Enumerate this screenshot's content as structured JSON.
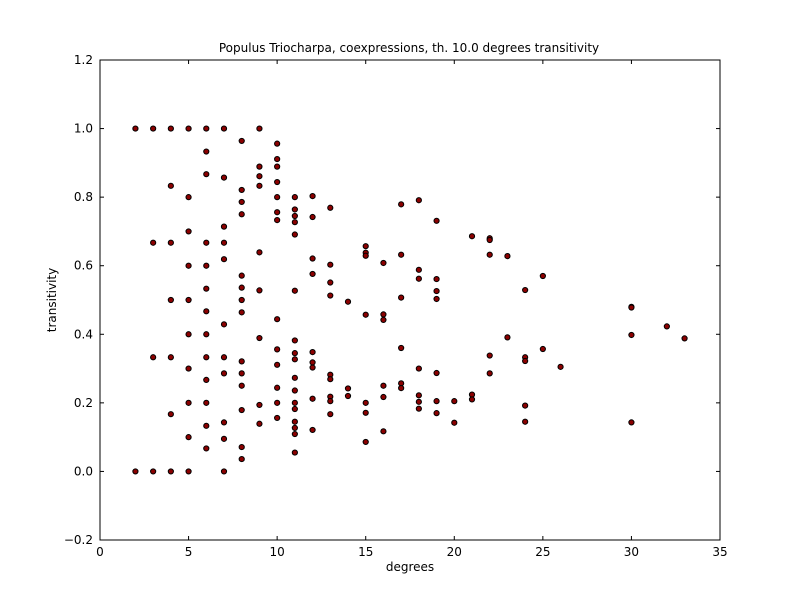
{
  "chart_data": {
    "type": "scatter",
    "title": "Populus Triocharpa, coexpressions, th. 10.0 degrees transitivity",
    "xlabel": "degrees",
    "ylabel": "transitivity",
    "xlim": [
      0,
      35
    ],
    "ylim": [
      -0.2,
      1.2
    ],
    "xticks": [
      0,
      5,
      10,
      15,
      20,
      25,
      30,
      35
    ],
    "xtick_labels": [
      "0",
      "5",
      "10",
      "15",
      "20",
      "25",
      "30",
      "35"
    ],
    "yticks": [
      -0.2,
      0.0,
      0.2,
      0.4,
      0.6,
      0.8,
      1.0,
      1.2
    ],
    "ytick_labels": [
      "−0.2",
      "0.0",
      "0.2",
      "0.4",
      "0.6",
      "0.8",
      "1.0",
      "1.2"
    ],
    "grid": false,
    "marker_color": "#8b0000",
    "marker_edge": "#000000",
    "series": [
      {
        "points": [
          [
            2,
            1.0
          ],
          [
            2,
            0.0
          ],
          [
            3,
            1.0
          ],
          [
            3,
            0.667
          ],
          [
            3,
            0.333
          ],
          [
            3,
            0.0
          ],
          [
            4,
            1.0
          ],
          [
            4,
            0.833
          ],
          [
            4,
            0.667
          ],
          [
            4,
            0.5
          ],
          [
            4,
            0.333
          ],
          [
            4,
            0.167
          ],
          [
            4,
            0.0
          ],
          [
            5,
            1.0
          ],
          [
            5,
            0.8
          ],
          [
            5,
            0.7
          ],
          [
            5,
            0.6
          ],
          [
            5,
            0.5
          ],
          [
            5,
            0.4
          ],
          [
            5,
            0.3
          ],
          [
            5,
            0.2
          ],
          [
            5,
            0.1
          ],
          [
            5,
            0.0
          ],
          [
            6,
            1.0
          ],
          [
            6,
            0.933
          ],
          [
            6,
            0.867
          ],
          [
            6,
            0.667
          ],
          [
            6,
            0.6
          ],
          [
            6,
            0.533
          ],
          [
            6,
            0.467
          ],
          [
            6,
            0.4
          ],
          [
            6,
            0.333
          ],
          [
            6,
            0.267
          ],
          [
            6,
            0.2
          ],
          [
            6,
            0.133
          ],
          [
            6,
            0.067
          ],
          [
            7,
            1.0
          ],
          [
            7,
            0.857
          ],
          [
            7,
            0.714
          ],
          [
            7,
            0.667
          ],
          [
            7,
            0.619
          ],
          [
            7,
            0.429
          ],
          [
            7,
            0.333
          ],
          [
            7,
            0.286
          ],
          [
            7,
            0.143
          ],
          [
            7,
            0.095
          ],
          [
            7,
            0.0
          ],
          [
            8,
            0.964
          ],
          [
            8,
            0.821
          ],
          [
            8,
            0.786
          ],
          [
            8,
            0.75
          ],
          [
            8,
            0.571
          ],
          [
            8,
            0.536
          ],
          [
            8,
            0.5
          ],
          [
            8,
            0.464
          ],
          [
            8,
            0.321
          ],
          [
            8,
            0.286
          ],
          [
            8,
            0.25
          ],
          [
            8,
            0.179
          ],
          [
            8,
            0.071
          ],
          [
            8,
            0.036
          ],
          [
            9,
            1.0
          ],
          [
            9,
            0.889
          ],
          [
            9,
            0.861
          ],
          [
            9,
            0.833
          ],
          [
            9,
            0.639
          ],
          [
            9,
            0.528
          ],
          [
            9,
            0.389
          ],
          [
            9,
            0.194
          ],
          [
            9,
            0.139
          ],
          [
            10,
            0.956
          ],
          [
            10,
            0.911
          ],
          [
            10,
            0.889
          ],
          [
            10,
            0.844
          ],
          [
            10,
            0.8
          ],
          [
            10,
            0.756
          ],
          [
            10,
            0.733
          ],
          [
            10,
            0.444
          ],
          [
            10,
            0.356
          ],
          [
            10,
            0.311
          ],
          [
            10,
            0.244
          ],
          [
            10,
            0.2
          ],
          [
            10,
            0.156
          ],
          [
            11,
            0.8
          ],
          [
            11,
            0.764
          ],
          [
            11,
            0.745
          ],
          [
            11,
            0.727
          ],
          [
            11,
            0.691
          ],
          [
            11,
            0.527
          ],
          [
            11,
            0.382
          ],
          [
            11,
            0.345
          ],
          [
            11,
            0.327
          ],
          [
            11,
            0.273
          ],
          [
            11,
            0.236
          ],
          [
            11,
            0.2
          ],
          [
            11,
            0.182
          ],
          [
            11,
            0.145
          ],
          [
            11,
            0.127
          ],
          [
            11,
            0.109
          ],
          [
            11,
            0.055
          ],
          [
            12,
            0.803
          ],
          [
            12,
            0.742
          ],
          [
            12,
            0.621
          ],
          [
            12,
            0.576
          ],
          [
            12,
            0.348
          ],
          [
            12,
            0.318
          ],
          [
            12,
            0.303
          ],
          [
            12,
            0.212
          ],
          [
            12,
            0.121
          ],
          [
            13,
            0.769
          ],
          [
            13,
            0.603
          ],
          [
            13,
            0.551
          ],
          [
            13,
            0.513
          ],
          [
            13,
            0.282
          ],
          [
            13,
            0.269
          ],
          [
            13,
            0.218
          ],
          [
            13,
            0.205
          ],
          [
            13,
            0.167
          ],
          [
            14,
            0.495
          ],
          [
            14,
            0.242
          ],
          [
            14,
            0.22
          ],
          [
            15,
            0.657
          ],
          [
            15,
            0.638
          ],
          [
            15,
            0.629
          ],
          [
            15,
            0.457
          ],
          [
            15,
            0.2
          ],
          [
            15,
            0.171
          ],
          [
            15,
            0.086
          ],
          [
            16,
            0.608
          ],
          [
            16,
            0.458
          ],
          [
            16,
            0.442
          ],
          [
            16,
            0.25
          ],
          [
            16,
            0.217
          ],
          [
            16,
            0.117
          ],
          [
            17,
            0.779
          ],
          [
            17,
            0.632
          ],
          [
            17,
            0.507
          ],
          [
            17,
            0.36
          ],
          [
            17,
            0.257
          ],
          [
            17,
            0.243
          ],
          [
            18,
            0.791
          ],
          [
            18,
            0.588
          ],
          [
            18,
            0.562
          ],
          [
            18,
            0.3
          ],
          [
            18,
            0.222
          ],
          [
            18,
            0.203
          ],
          [
            18,
            0.183
          ],
          [
            19,
            0.731
          ],
          [
            19,
            0.561
          ],
          [
            19,
            0.526
          ],
          [
            19,
            0.503
          ],
          [
            19,
            0.287
          ],
          [
            19,
            0.205
          ],
          [
            19,
            0.17
          ],
          [
            20,
            0.205
          ],
          [
            20,
            0.142
          ],
          [
            21,
            0.686
          ],
          [
            21,
            0.224
          ],
          [
            21,
            0.21
          ],
          [
            22,
            0.68
          ],
          [
            22,
            0.675
          ],
          [
            22,
            0.632
          ],
          [
            22,
            0.338
          ],
          [
            22,
            0.286
          ],
          [
            23,
            0.628
          ],
          [
            23,
            0.391
          ],
          [
            24,
            0.529
          ],
          [
            24,
            0.333
          ],
          [
            24,
            0.322
          ],
          [
            24,
            0.192
          ],
          [
            24,
            0.145
          ],
          [
            25,
            0.57
          ],
          [
            25,
            0.357
          ],
          [
            26,
            0.305
          ],
          [
            30,
            0.48
          ],
          [
            30,
            0.478
          ],
          [
            30,
            0.398
          ],
          [
            30,
            0.143
          ],
          [
            32,
            0.423
          ],
          [
            33,
            0.388
          ]
        ]
      }
    ]
  }
}
